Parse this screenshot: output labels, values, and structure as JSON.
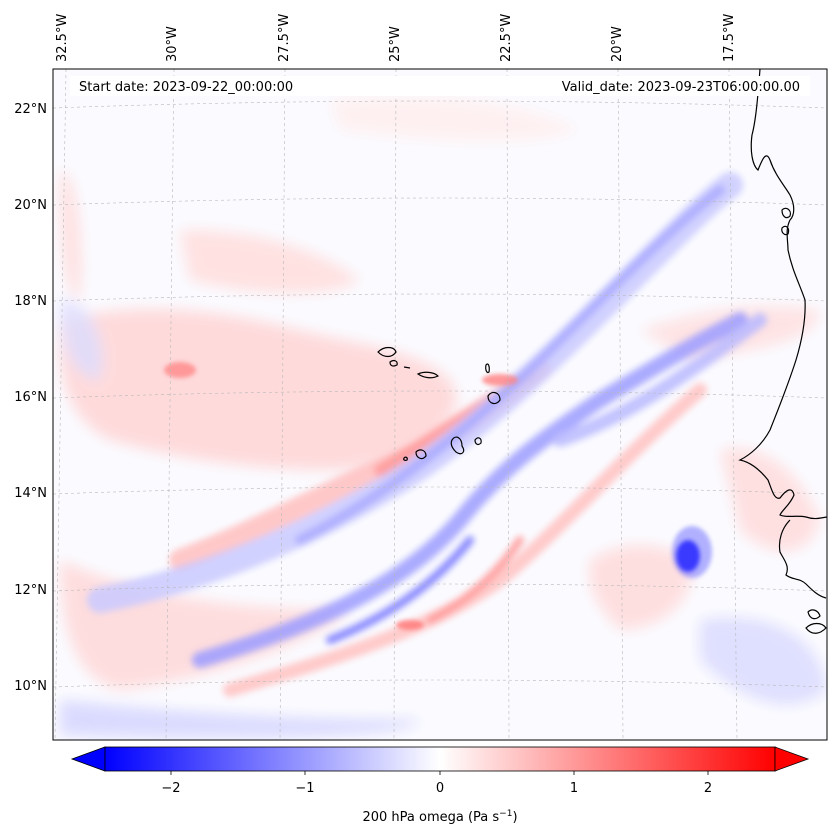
{
  "map": {
    "start_label": "Start date: 2023-09-22_00:00:00",
    "valid_label": "Valid_date: 2023-09-23T06:00:00.00",
    "lon_labels": [
      "32.5°W",
      "30°W",
      "27.5°W",
      "25°W",
      "22.5°W",
      "20°W",
      "17.5°W"
    ],
    "lat_labels": [
      "22°N",
      "20°N",
      "18°N",
      "16°N",
      "14°N",
      "12°N",
      "10°N"
    ],
    "projection": "Lambert conformal",
    "field": "200 hPa omega"
  },
  "colorbar": {
    "ticks": [
      "−2",
      "−1",
      "0",
      "1",
      "2"
    ],
    "label": "200 hPa omega (Pa s",
    "label_sup": "−1",
    "label_end": ")",
    "min": -2.6,
    "max": 2.6,
    "colormap": "bwr",
    "colors": {
      "neg": "#0000ff",
      "zero": "#ffffff",
      "pos": "#ff0000"
    }
  }
}
